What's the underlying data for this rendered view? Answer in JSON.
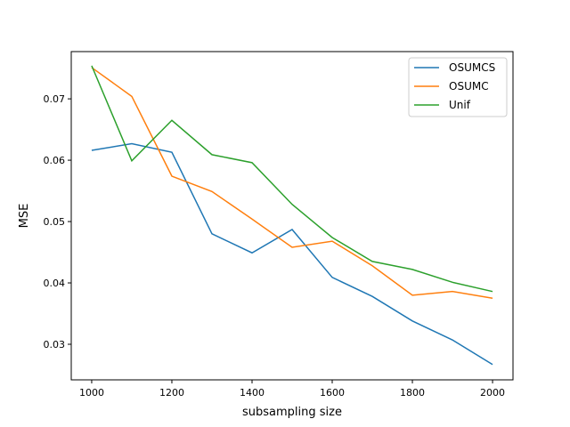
{
  "chart_data": {
    "type": "line",
    "title": "",
    "xlabel": "subsampling size",
    "ylabel": "MSE",
    "xlim": [
      949,
      2051
    ],
    "ylim": [
      0.0242,
      0.0777
    ],
    "xticks": [
      1000,
      1200,
      1400,
      1600,
      1800,
      2000
    ],
    "yticks": [
      0.03,
      0.04,
      0.05,
      0.06,
      0.07
    ],
    "ytick_labels": [
      "0.03",
      "0.04",
      "0.05",
      "0.06",
      "0.07"
    ],
    "grid": false,
    "legend_position": "top-right",
    "x": [
      1000,
      1100,
      1200,
      1300,
      1400,
      1500,
      1600,
      1700,
      1800,
      1900,
      2000
    ],
    "series": [
      {
        "name": "OSUMCS",
        "color": "#1f77b4",
        "values": [
          0.0616,
          0.0627,
          0.0613,
          0.048,
          0.0449,
          0.0487,
          0.0409,
          0.0378,
          0.0338,
          0.0307,
          0.0267
        ]
      },
      {
        "name": "OSUMC",
        "color": "#ff7f0e",
        "values": [
          0.0751,
          0.0704,
          0.0574,
          0.0549,
          0.0504,
          0.0458,
          0.0468,
          0.0428,
          0.038,
          0.0386,
          0.0375
        ]
      },
      {
        "name": "Unif",
        "color": "#2ca02c",
        "values": [
          0.0754,
          0.0599,
          0.0665,
          0.0609,
          0.0596,
          0.0528,
          0.0474,
          0.0435,
          0.0422,
          0.0401,
          0.0386
        ]
      }
    ]
  }
}
